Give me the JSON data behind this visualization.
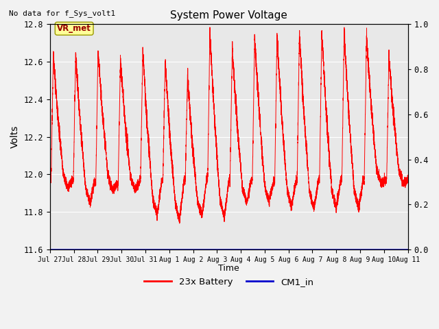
{
  "title": "System Power Voltage",
  "top_left_text": "No data for f_Sys_volt1",
  "xlabel": "Time",
  "ylabel": "Volts",
  "ylim_left": [
    11.6,
    12.8
  ],
  "ylim_right": [
    0.0,
    1.0
  ],
  "yticks_left": [
    11.6,
    11.8,
    12.0,
    12.2,
    12.4,
    12.6,
    12.8
  ],
  "yticks_right": [
    0.0,
    0.2,
    0.4,
    0.6,
    0.8,
    1.0
  ],
  "xtick_labels": [
    "Jul 27",
    "Jul 28",
    "Jul 29",
    "Jul 30",
    "Jul 31",
    "Aug 1",
    "Aug 2",
    "Aug 3",
    "Aug 4",
    "Aug 5",
    "Aug 6",
    "Aug 7",
    "Aug 8",
    "Aug 9",
    "Aug 10",
    "Aug 11"
  ],
  "legend_entries": [
    "23x Battery",
    "CM1_in"
  ],
  "legend_colors": [
    "#ff0000",
    "#0000cc"
  ],
  "vr_met_label": "VR_met",
  "vr_met_bg": "#ffff99",
  "vr_met_border": "#999900",
  "line_color_battery": "#ff0000",
  "line_color_cm1": "#0000cc",
  "fig_bg_color": "#f2f2f2",
  "plot_bg_color": "#e8e8e8",
  "grid_color": "#ffffff",
  "n_days": 16,
  "points_per_day": 500
}
